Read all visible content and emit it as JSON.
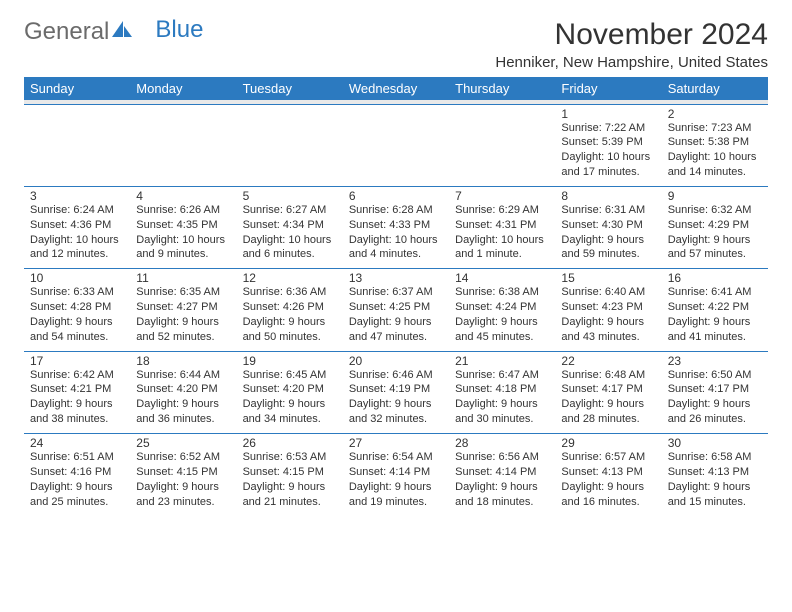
{
  "logo": {
    "word1": "General",
    "word2": "Blue"
  },
  "header": {
    "month": "November 2024",
    "location": "Henniker, New Hampshire, United States"
  },
  "colors": {
    "accent": "#2c7ac0",
    "header_text": "#ffffff",
    "body_text": "#333333",
    "spacer": "#e9e9e9"
  },
  "day_names": [
    "Sunday",
    "Monday",
    "Tuesday",
    "Wednesday",
    "Thursday",
    "Friday",
    "Saturday"
  ],
  "weeks": [
    [
      null,
      null,
      null,
      null,
      null,
      {
        "d": "1",
        "sr": "Sunrise: 7:22 AM",
        "ss": "Sunset: 5:39 PM",
        "dl1": "Daylight: 10 hours",
        "dl2": "and 17 minutes."
      },
      {
        "d": "2",
        "sr": "Sunrise: 7:23 AM",
        "ss": "Sunset: 5:38 PM",
        "dl1": "Daylight: 10 hours",
        "dl2": "and 14 minutes."
      }
    ],
    [
      {
        "d": "3",
        "sr": "Sunrise: 6:24 AM",
        "ss": "Sunset: 4:36 PM",
        "dl1": "Daylight: 10 hours",
        "dl2": "and 12 minutes."
      },
      {
        "d": "4",
        "sr": "Sunrise: 6:26 AM",
        "ss": "Sunset: 4:35 PM",
        "dl1": "Daylight: 10 hours",
        "dl2": "and 9 minutes."
      },
      {
        "d": "5",
        "sr": "Sunrise: 6:27 AM",
        "ss": "Sunset: 4:34 PM",
        "dl1": "Daylight: 10 hours",
        "dl2": "and 6 minutes."
      },
      {
        "d": "6",
        "sr": "Sunrise: 6:28 AM",
        "ss": "Sunset: 4:33 PM",
        "dl1": "Daylight: 10 hours",
        "dl2": "and 4 minutes."
      },
      {
        "d": "7",
        "sr": "Sunrise: 6:29 AM",
        "ss": "Sunset: 4:31 PM",
        "dl1": "Daylight: 10 hours",
        "dl2": "and 1 minute."
      },
      {
        "d": "8",
        "sr": "Sunrise: 6:31 AM",
        "ss": "Sunset: 4:30 PM",
        "dl1": "Daylight: 9 hours",
        "dl2": "and 59 minutes."
      },
      {
        "d": "9",
        "sr": "Sunrise: 6:32 AM",
        "ss": "Sunset: 4:29 PM",
        "dl1": "Daylight: 9 hours",
        "dl2": "and 57 minutes."
      }
    ],
    [
      {
        "d": "10",
        "sr": "Sunrise: 6:33 AM",
        "ss": "Sunset: 4:28 PM",
        "dl1": "Daylight: 9 hours",
        "dl2": "and 54 minutes."
      },
      {
        "d": "11",
        "sr": "Sunrise: 6:35 AM",
        "ss": "Sunset: 4:27 PM",
        "dl1": "Daylight: 9 hours",
        "dl2": "and 52 minutes."
      },
      {
        "d": "12",
        "sr": "Sunrise: 6:36 AM",
        "ss": "Sunset: 4:26 PM",
        "dl1": "Daylight: 9 hours",
        "dl2": "and 50 minutes."
      },
      {
        "d": "13",
        "sr": "Sunrise: 6:37 AM",
        "ss": "Sunset: 4:25 PM",
        "dl1": "Daylight: 9 hours",
        "dl2": "and 47 minutes."
      },
      {
        "d": "14",
        "sr": "Sunrise: 6:38 AM",
        "ss": "Sunset: 4:24 PM",
        "dl1": "Daylight: 9 hours",
        "dl2": "and 45 minutes."
      },
      {
        "d": "15",
        "sr": "Sunrise: 6:40 AM",
        "ss": "Sunset: 4:23 PM",
        "dl1": "Daylight: 9 hours",
        "dl2": "and 43 minutes."
      },
      {
        "d": "16",
        "sr": "Sunrise: 6:41 AM",
        "ss": "Sunset: 4:22 PM",
        "dl1": "Daylight: 9 hours",
        "dl2": "and 41 minutes."
      }
    ],
    [
      {
        "d": "17",
        "sr": "Sunrise: 6:42 AM",
        "ss": "Sunset: 4:21 PM",
        "dl1": "Daylight: 9 hours",
        "dl2": "and 38 minutes."
      },
      {
        "d": "18",
        "sr": "Sunrise: 6:44 AM",
        "ss": "Sunset: 4:20 PM",
        "dl1": "Daylight: 9 hours",
        "dl2": "and 36 minutes."
      },
      {
        "d": "19",
        "sr": "Sunrise: 6:45 AM",
        "ss": "Sunset: 4:20 PM",
        "dl1": "Daylight: 9 hours",
        "dl2": "and 34 minutes."
      },
      {
        "d": "20",
        "sr": "Sunrise: 6:46 AM",
        "ss": "Sunset: 4:19 PM",
        "dl1": "Daylight: 9 hours",
        "dl2": "and 32 minutes."
      },
      {
        "d": "21",
        "sr": "Sunrise: 6:47 AM",
        "ss": "Sunset: 4:18 PM",
        "dl1": "Daylight: 9 hours",
        "dl2": "and 30 minutes."
      },
      {
        "d": "22",
        "sr": "Sunrise: 6:48 AM",
        "ss": "Sunset: 4:17 PM",
        "dl1": "Daylight: 9 hours",
        "dl2": "and 28 minutes."
      },
      {
        "d": "23",
        "sr": "Sunrise: 6:50 AM",
        "ss": "Sunset: 4:17 PM",
        "dl1": "Daylight: 9 hours",
        "dl2": "and 26 minutes."
      }
    ],
    [
      {
        "d": "24",
        "sr": "Sunrise: 6:51 AM",
        "ss": "Sunset: 4:16 PM",
        "dl1": "Daylight: 9 hours",
        "dl2": "and 25 minutes."
      },
      {
        "d": "25",
        "sr": "Sunrise: 6:52 AM",
        "ss": "Sunset: 4:15 PM",
        "dl1": "Daylight: 9 hours",
        "dl2": "and 23 minutes."
      },
      {
        "d": "26",
        "sr": "Sunrise: 6:53 AM",
        "ss": "Sunset: 4:15 PM",
        "dl1": "Daylight: 9 hours",
        "dl2": "and 21 minutes."
      },
      {
        "d": "27",
        "sr": "Sunrise: 6:54 AM",
        "ss": "Sunset: 4:14 PM",
        "dl1": "Daylight: 9 hours",
        "dl2": "and 19 minutes."
      },
      {
        "d": "28",
        "sr": "Sunrise: 6:56 AM",
        "ss": "Sunset: 4:14 PM",
        "dl1": "Daylight: 9 hours",
        "dl2": "and 18 minutes."
      },
      {
        "d": "29",
        "sr": "Sunrise: 6:57 AM",
        "ss": "Sunset: 4:13 PM",
        "dl1": "Daylight: 9 hours",
        "dl2": "and 16 minutes."
      },
      {
        "d": "30",
        "sr": "Sunrise: 6:58 AM",
        "ss": "Sunset: 4:13 PM",
        "dl1": "Daylight: 9 hours",
        "dl2": "and 15 minutes."
      }
    ]
  ]
}
